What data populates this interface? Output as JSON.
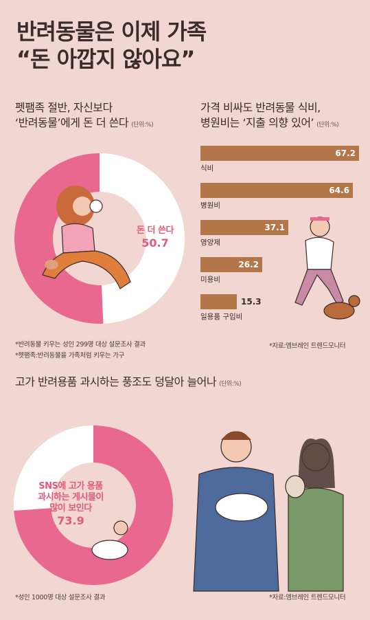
{
  "title_line1": "반려동물은 이제 가족",
  "title_line2": "“돈 아깝지 않아요”",
  "colors": {
    "background": "#f2d6d1",
    "pink": "#e86890",
    "brown": "#b27648",
    "white": "#ffffff"
  },
  "chart_data": [
    {
      "type": "pie",
      "title": "펫팸족 절반, 자신보다 ‘반려동물’에게 돈 더 쓴다",
      "unit": "(단위:%)",
      "slices": [
        {
          "label": "돈 더 쓴다",
          "value": 50.7
        }
      ],
      "notes": [
        "*반려동물 키우는 성인 299명 대상 설문조사 결과",
        "*펫팸족:반려동물을 가족처럼 키우는 가구"
      ]
    },
    {
      "type": "bar",
      "title": "가격 비싸도 반려동물 식비, 병원비는 ‘지출 의향 있어’",
      "unit": "(단위:%)",
      "categories": [
        "식비",
        "병원비",
        "영양제",
        "미용비",
        "일용품 구입비"
      ],
      "values": [
        67.2,
        64.6,
        37.1,
        26.2,
        15.3
      ],
      "source": "*자료:엠브레인 트렌드모니터"
    },
    {
      "type": "pie",
      "title": "고가 반려용품 과시하는 풍조도 덩달아 늘어나",
      "unit": "(단위:%)",
      "slices": [
        {
          "label": "SNS에 고가 용품 과시하는 게시물이 많이 보인다",
          "value": 73.9
        }
      ],
      "notes": [
        "*성인 1000명 대상 설문조사 결과"
      ],
      "source": "*자료:엠브레인 트렌드모니터"
    }
  ],
  "sec1": {
    "title_line1": "펫팸족 절반, 자신보다",
    "title_line2": "‘반려동물’에게 돈 더 쓴다",
    "unit": "(단위:%)",
    "slice_label": "돈 더 쓴다",
    "slice_value": "50.7",
    "note1": "*반려동물 키우는 성인 299명 대상 설문조사 결과",
    "note2": "*펫팸족:반려동물을 가족처럼 키우는 가구"
  },
  "sec2": {
    "title_line1": "가격 비싸도 반려동물 식비,",
    "title_line2": "병원비는 ‘지출 의향 있어’",
    "unit": "(단위:%)",
    "source": "*자료:엠브레인 트렌드모니터"
  },
  "sec3": {
    "title": "고가 반려용품 과시하는 풍조도 덩달아 늘어나",
    "unit": "(단위:%)",
    "label_line1": "SNS에 고가 용품",
    "label_line2": "과시하는 게시물이",
    "label_line3": "많이 보인다",
    "slice_value": "73.9",
    "note": "*성인 1000명 대상 설문조사 결과",
    "source": "*자료:엠브레인 트렌드모니터"
  }
}
